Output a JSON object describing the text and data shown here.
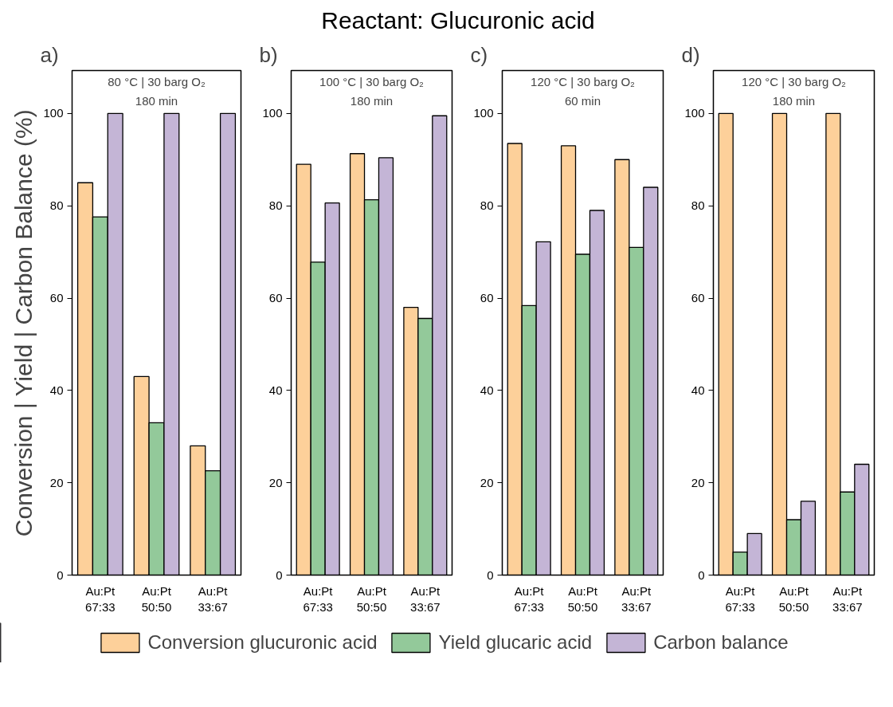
{
  "chart_data": [
    {
      "type": "bar",
      "title": "80 °C | 30 barg O₂",
      "subtitle": "180 min",
      "ylabel": "Conversion | Yield | Carbon Balance (%)",
      "annotations": [
        "Reactant: Glucuronic acid",
        "a)"
      ],
      "categories": [
        "Au:Pt\n67:33",
        "Au:Pt\n50:50",
        "Au:Pt\n33:67"
      ],
      "ylim": [
        0,
        109.3
      ],
      "yticks": [
        0,
        20,
        40,
        60,
        80,
        100
      ],
      "grid": false,
      "legend": "bottom",
      "series": [
        {
          "name": "Conversion glucuronic acid",
          "color": "#fdd09a",
          "values": [
            85,
            43,
            28
          ]
        },
        {
          "name": "Yield glucaric acid",
          "color": "#93c99a",
          "values": [
            77.6,
            33,
            22.6
          ]
        },
        {
          "name": "Carbon balance",
          "color": "#c4b5d6",
          "values": [
            100,
            100,
            100
          ]
        }
      ]
    },
    {
      "type": "bar",
      "title": "100 °C | 30 barg O₂",
      "subtitle": "180 min",
      "annotations": [
        "b)"
      ],
      "categories": [
        "Au:Pt\n67:33",
        "Au:Pt\n50:50",
        "Au:Pt\n33:67"
      ],
      "ylim": [
        0,
        109.3
      ],
      "yticks": [
        0,
        20,
        40,
        60,
        80,
        100
      ],
      "grid": false,
      "series": [
        {
          "color": "#fdd09a",
          "values": [
            89,
            91.3,
            58
          ]
        },
        {
          "color": "#93c99a",
          "values": [
            67.8,
            81.3,
            55.6
          ]
        },
        {
          "color": "#c4b5d6",
          "values": [
            80.6,
            90.4,
            99.5
          ]
        }
      ]
    },
    {
      "type": "bar",
      "title": "120 °C | 30 barg O₂",
      "subtitle": "60 min",
      "annotations": [
        "c)"
      ],
      "categories": [
        "Au:Pt\n67:33",
        "Au:Pt\n50:50",
        "Au:Pt\n33:67"
      ],
      "ylim": [
        0,
        109.3
      ],
      "yticks": [
        0,
        20,
        40,
        60,
        80,
        100
      ],
      "grid": false,
      "series": [
        {
          "color": "#fdd09a",
          "values": [
            93.5,
            93,
            90
          ]
        },
        {
          "color": "#93c99a",
          "values": [
            58.4,
            69.5,
            71
          ]
        },
        {
          "color": "#c4b5d6",
          "values": [
            72.2,
            79,
            84
          ]
        }
      ]
    },
    {
      "type": "bar",
      "title": "120 °C | 30 barg O₂",
      "subtitle": "180 min",
      "annotations": [
        "d)"
      ],
      "categories": [
        "Au:Pt\n67:33",
        "Au:Pt\n50:50",
        "Au:Pt\n33:67"
      ],
      "ylim": [
        0,
        109.3
      ],
      "yticks": [
        0,
        20,
        40,
        60,
        80,
        100
      ],
      "grid": false,
      "series": [
        {
          "color": "#fdd09a",
          "values": [
            100,
            100,
            100
          ]
        },
        {
          "color": "#93c99a",
          "values": [
            5,
            12,
            18
          ]
        },
        {
          "color": "#c4b5d6",
          "values": [
            9,
            16,
            24
          ]
        }
      ]
    }
  ]
}
